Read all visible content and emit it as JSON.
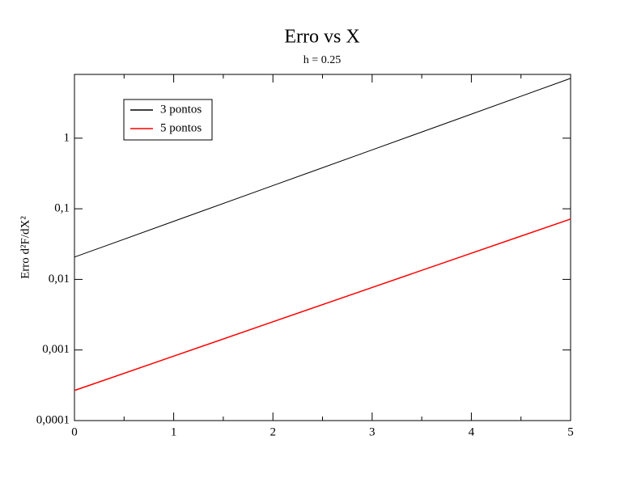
{
  "chart_data": {
    "type": "line",
    "title": "Erro vs X",
    "subtitle": "h = 0.25",
    "ylabel": "Erro d²F/dX²",
    "x": [
      0,
      1,
      2,
      3,
      4,
      5
    ],
    "series": [
      {
        "name": "3 pontos",
        "color": "#000000",
        "values": [
          0.0207,
          0.0664,
          0.213,
          0.683,
          2.19,
          7.03
        ]
      },
      {
        "name": "5 pontos",
        "color": "#ff0000",
        "values": [
          0.000267,
          0.000818,
          0.00251,
          0.00768,
          0.0235,
          0.0716
        ]
      }
    ],
    "xlim": [
      0,
      5
    ],
    "xticks": [
      0,
      1,
      2,
      3,
      4,
      5
    ],
    "ylim": [
      0.0001,
      8
    ],
    "ylog": true,
    "yticks": [
      {
        "value": 0.0001,
        "label": "0,0001"
      },
      {
        "value": 0.001,
        "label": "0,001"
      },
      {
        "value": 0.01,
        "label": "0,01"
      },
      {
        "value": 0.1,
        "label": "0,1"
      },
      1
    ],
    "legend": "upper-left"
  }
}
